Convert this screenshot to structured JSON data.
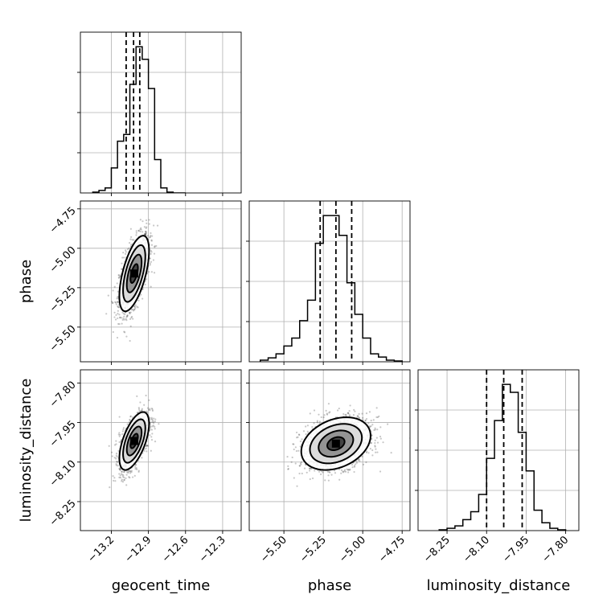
{
  "chart_data": {
    "type": "corner",
    "parameters": [
      "geocent_time",
      "phase",
      "luminosity_distance"
    ],
    "ranges": {
      "geocent_time": [
        -13.45,
        -12.15
      ],
      "phase": [
        -5.72,
        -4.7
      ],
      "luminosity_distance": [
        -8.36,
        -7.75
      ]
    },
    "ticks": {
      "geocent_time": [
        -13.2,
        -12.9,
        -12.6,
        -12.3
      ],
      "phase": [
        -5.5,
        -5.25,
        -5.0,
        -4.75
      ],
      "luminosity_distance": [
        -8.25,
        -8.1,
        -7.95,
        -7.8
      ]
    },
    "tick_labels": {
      "geocent_time": [
        "−13.2",
        "−12.9",
        "−12.6",
        "−12.3"
      ],
      "phase": [
        "−5.50",
        "−5.25",
        "−5.00",
        "−4.75"
      ],
      "luminosity_distance": [
        "−8.25",
        "−8.10",
        "−7.95",
        "−7.80"
      ]
    },
    "histograms": {
      "geocent_time": {
        "edges": [
          -13.35,
          -13.3,
          -13.25,
          -13.2,
          -13.15,
          -13.1,
          -13.05,
          -13.0,
          -12.95,
          -12.9,
          -12.85,
          -12.8,
          -12.75,
          -12.7,
          -12.65,
          -12.6
        ],
        "counts": [
          1,
          3,
          6,
          30,
          62,
          70,
          130,
          175,
          160,
          125,
          40,
          6,
          1,
          0,
          0
        ]
      },
      "phase": {
        "edges": [
          -5.65,
          -5.6,
          -5.55,
          -5.5,
          -5.45,
          -5.4,
          -5.35,
          -5.3,
          -5.25,
          -5.2,
          -5.15,
          -5.1,
          -5.05,
          -5.0,
          -4.95,
          -4.9,
          -4.85,
          -4.8,
          -4.75
        ],
        "counts": [
          2,
          5,
          10,
          20,
          30,
          52,
          78,
          150,
          185,
          185,
          160,
          100,
          60,
          30,
          10,
          6,
          2,
          1
        ]
      },
      "luminosity_distance": {
        "edges": [
          -8.28,
          -8.25,
          -8.22,
          -8.19,
          -8.16,
          -8.13,
          -8.1,
          -8.07,
          -8.04,
          -8.01,
          -7.98,
          -7.95,
          -7.92,
          -7.89,
          -7.86,
          -7.83,
          -7.8
        ],
        "counts": [
          1,
          3,
          6,
          14,
          24,
          46,
          92,
          140,
          186,
          176,
          125,
          76,
          26,
          10,
          3,
          1
        ]
      }
    },
    "quantiles": {
      "geocent_time": [
        -13.08,
        -13.02,
        -12.97
      ],
      "phase": [
        -5.27,
        -5.17,
        -5.07
      ],
      "luminosity_distance": [
        -8.1,
        -8.035,
        -7.965
      ]
    },
    "pairs": [
      {
        "x": "geocent_time",
        "y": "phase",
        "mean": [
          -13.015,
          -5.16
        ],
        "std": [
          0.06,
          0.12
        ],
        "corr": 0.6,
        "contour_levels": [
          0.5,
          1.0,
          1.5,
          2.0
        ]
      },
      {
        "x": "geocent_time",
        "y": "luminosity_distance",
        "mean": [
          -13.015,
          -8.02
        ],
        "std": [
          0.06,
          0.055
        ],
        "corr": 0.6,
        "contour_levels": [
          0.5,
          1.0,
          1.5,
          2.0
        ]
      },
      {
        "x": "phase",
        "y": "luminosity_distance",
        "mean": [
          -5.17,
          -8.03
        ],
        "std": [
          0.11,
          0.05
        ],
        "corr": 0.3,
        "contour_levels": [
          0.5,
          1.0,
          1.5,
          2.0
        ]
      }
    ],
    "xlabels": [
      "geocent_time",
      "phase",
      "luminosity_distance"
    ],
    "ylabels": [
      "",
      "phase",
      "luminosity_distance"
    ],
    "grid": true
  }
}
